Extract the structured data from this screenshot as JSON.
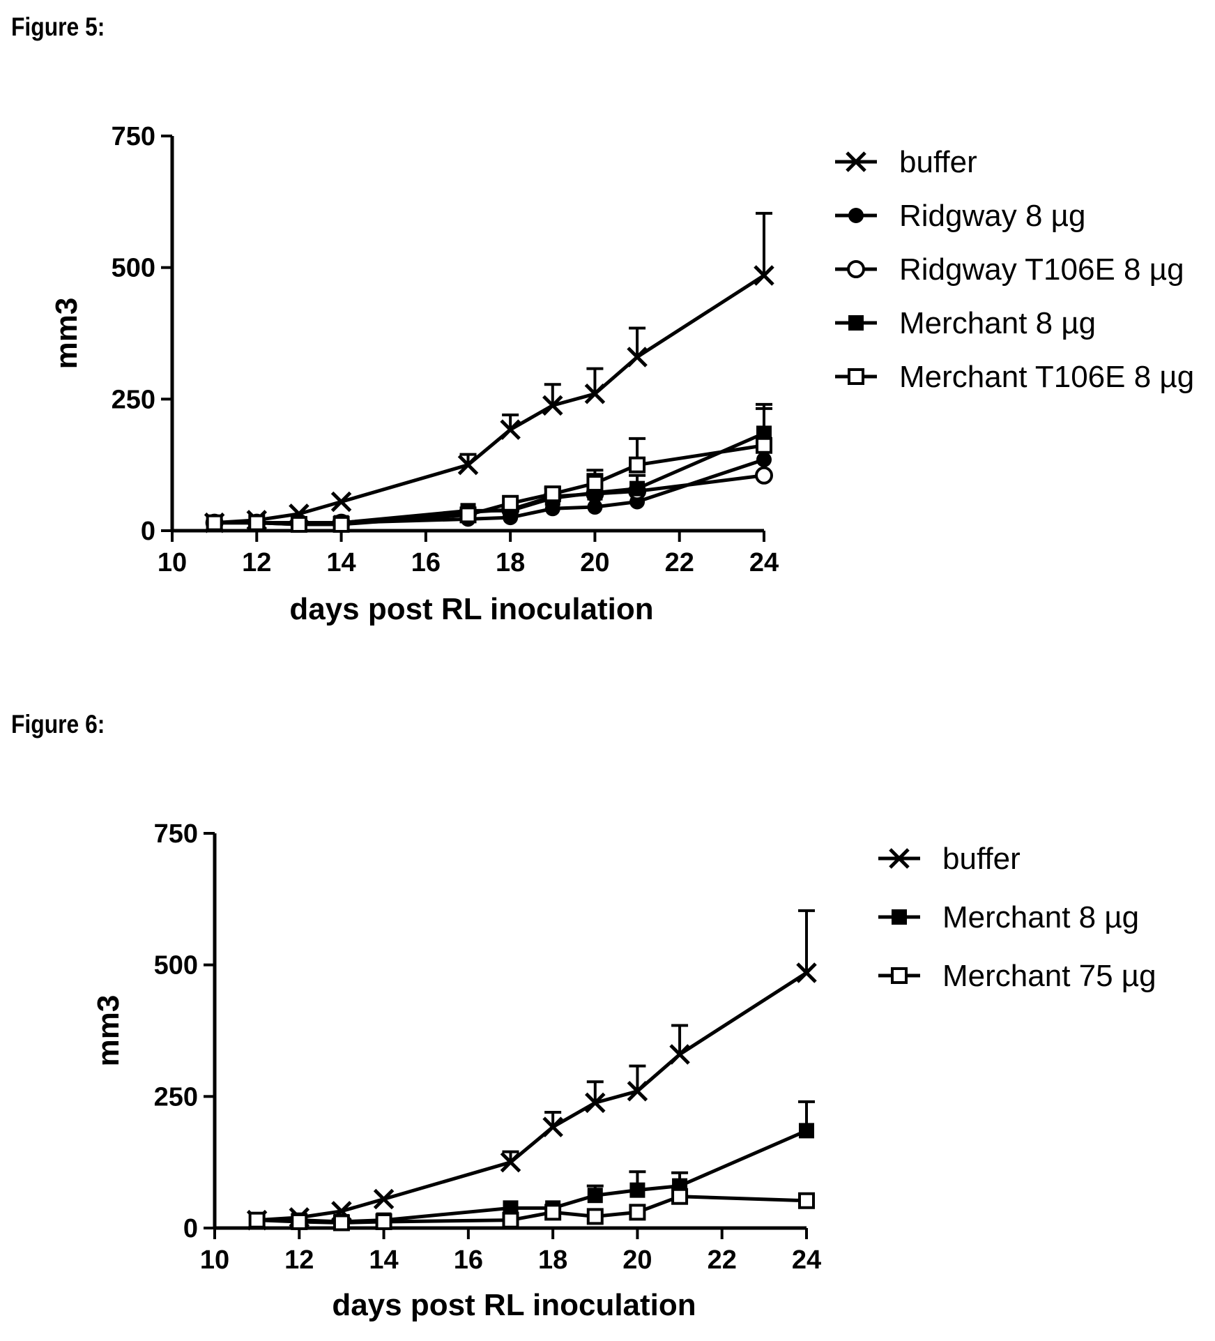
{
  "figures": {
    "fig5": {
      "label": "Figure 5:"
    },
    "fig6": {
      "label": "Figure 6:"
    }
  },
  "chart_data": [
    {
      "type": "line",
      "xlabel": "days post RL inoculation",
      "ylabel": "mm3",
      "xlim": [
        10,
        24
      ],
      "ylim": [
        0,
        750
      ],
      "xticks": [
        10,
        12,
        14,
        16,
        18,
        20,
        22,
        24
      ],
      "yticks": [
        0,
        250,
        500,
        750
      ],
      "legend_position": "right",
      "x": [
        11,
        12,
        13,
        14,
        17,
        18,
        19,
        20,
        21,
        24
      ],
      "series": [
        {
          "name": "buffer",
          "marker": "x",
          "values": [
            15,
            20,
            32,
            55,
            125,
            192,
            238,
            260,
            330,
            485
          ],
          "error": [
            0,
            0,
            0,
            0,
            20,
            28,
            40,
            48,
            55,
            118
          ]
        },
        {
          "name": "Ridgway 8 µg",
          "marker": "filled-circle",
          "values": [
            15,
            15,
            15,
            15,
            22,
            25,
            42,
            45,
            55,
            135
          ],
          "error": [
            0,
            0,
            0,
            0,
            0,
            0,
            0,
            0,
            0,
            0
          ]
        },
        {
          "name": "Ridgway T106E 8 µg",
          "marker": "open-circle",
          "values": [
            15,
            15,
            15,
            15,
            35,
            40,
            65,
            70,
            75,
            105
          ],
          "error": [
            0,
            0,
            0,
            0,
            0,
            0,
            0,
            0,
            0,
            0
          ]
        },
        {
          "name": "Merchant 8 µg",
          "marker": "filled-square",
          "values": [
            15,
            15,
            12,
            15,
            38,
            38,
            62,
            72,
            80,
            185
          ],
          "error": [
            0,
            0,
            0,
            0,
            0,
            0,
            18,
            35,
            25,
            55
          ]
        },
        {
          "name": "Merchant T106E 8 µg",
          "marker": "open-square",
          "values": [
            15,
            15,
            12,
            12,
            30,
            52,
            70,
            90,
            125,
            162
          ],
          "error": [
            0,
            0,
            0,
            0,
            0,
            0,
            12,
            25,
            50,
            70
          ]
        }
      ]
    },
    {
      "type": "line",
      "xlabel": "days post RL inoculation",
      "ylabel": "mm3",
      "xlim": [
        10,
        24
      ],
      "ylim": [
        0,
        750
      ],
      "xticks": [
        10,
        12,
        14,
        16,
        18,
        20,
        22,
        24
      ],
      "yticks": [
        0,
        250,
        500,
        750
      ],
      "legend_position": "right",
      "x": [
        11,
        12,
        13,
        14,
        17,
        18,
        19,
        20,
        21,
        24
      ],
      "series": [
        {
          "name": "buffer",
          "marker": "x",
          "values": [
            15,
            20,
            32,
            55,
            125,
            192,
            238,
            260,
            330,
            485
          ],
          "error": [
            0,
            0,
            0,
            0,
            20,
            28,
            40,
            48,
            55,
            118
          ]
        },
        {
          "name": "Merchant 8 µg",
          "marker": "filled-square",
          "values": [
            15,
            15,
            12,
            15,
            38,
            38,
            62,
            72,
            80,
            185
          ],
          "error": [
            0,
            0,
            0,
            0,
            0,
            0,
            18,
            35,
            25,
            55
          ]
        },
        {
          "name": "Merchant 75 µg",
          "marker": "open-square",
          "values": [
            15,
            12,
            10,
            12,
            15,
            30,
            22,
            30,
            60,
            52
          ],
          "error": [
            0,
            0,
            0,
            0,
            0,
            0,
            0,
            0,
            0,
            0
          ]
        }
      ]
    }
  ]
}
